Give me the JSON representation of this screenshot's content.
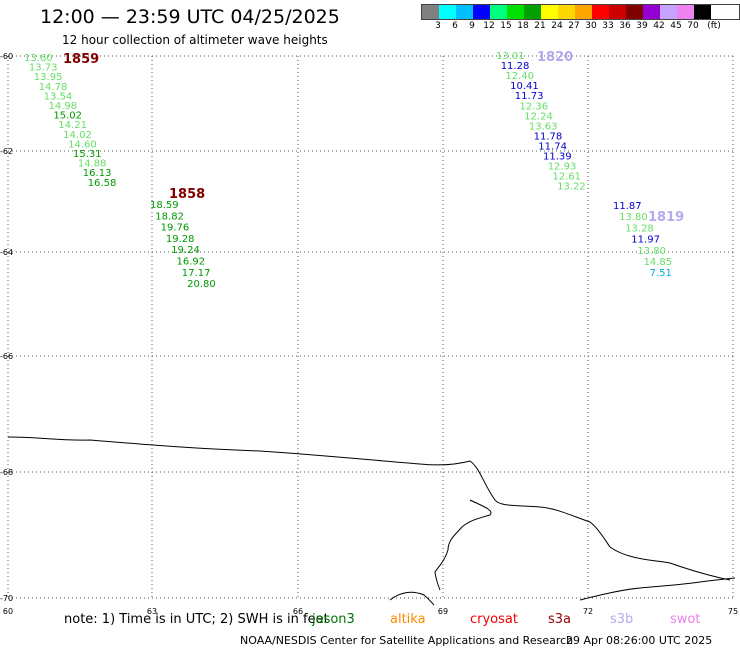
{
  "header": {
    "title": "12:00 — 23:59 UTC 04/25/2025",
    "subtitle": "12 hour collection of altimeter wave heights"
  },
  "legend": {
    "unit": "(ft)",
    "colors": [
      "#808080",
      "#00ffff",
      "#00bfff",
      "#0000ff",
      "#00ff7f",
      "#00e000",
      "#00a000",
      "#ffff00",
      "#ffd700",
      "#ffa500",
      "#ff0000",
      "#cc0000",
      "#800000",
      "#9400d3",
      "#c8a2ff",
      "#ee82ee",
      "#000000"
    ],
    "labels": [
      "3",
      "6",
      "9",
      "12",
      "15",
      "18",
      "21",
      "24",
      "27",
      "30",
      "33",
      "36",
      "39",
      "42",
      "45",
      "70"
    ]
  },
  "map": {
    "lat_ticks": [
      "-60",
      "-62",
      "-64",
      "-66",
      "-68",
      "-70"
    ],
    "lon_ticks": [
      "60",
      "63",
      "66",
      "69",
      "72",
      "75"
    ]
  },
  "passes": [
    {
      "time_label": "1859",
      "label_color": "#800000",
      "points": [
        {
          "v": "13.60",
          "c": "#66dd66"
        },
        {
          "v": "13.73",
          "c": "#66dd66"
        },
        {
          "v": "13.95",
          "c": "#66dd66"
        },
        {
          "v": "14.78",
          "c": "#66dd66"
        },
        {
          "v": "13.54",
          "c": "#66dd66"
        },
        {
          "v": "14.98",
          "c": "#66dd66"
        },
        {
          "v": "15.02",
          "c": "#009900"
        },
        {
          "v": "14.21",
          "c": "#66dd66"
        },
        {
          "v": "14.02",
          "c": "#66dd66"
        },
        {
          "v": "14.60",
          "c": "#66dd66"
        },
        {
          "v": "15.31",
          "c": "#009900"
        },
        {
          "v": "14.88",
          "c": "#66dd66"
        },
        {
          "v": "16.13",
          "c": "#009900"
        },
        {
          "v": "16.58",
          "c": "#009900"
        }
      ]
    },
    {
      "time_label": "1858",
      "label_color": "#800000",
      "points": [
        {
          "v": "18.59",
          "c": "#009900"
        },
        {
          "v": "18.82",
          "c": "#009900"
        },
        {
          "v": "19.76",
          "c": "#009900"
        },
        {
          "v": "19.28",
          "c": "#009900"
        },
        {
          "v": "19.24",
          "c": "#009900"
        },
        {
          "v": "16.92",
          "c": "#009900"
        },
        {
          "v": "17.17",
          "c": "#009900"
        },
        {
          "v": "20.80",
          "c": "#009900"
        }
      ]
    },
    {
      "time_label": "1820",
      "label_color": "#b8a8f0",
      "points": [
        {
          "v": "13.01",
          "c": "#66dd66"
        },
        {
          "v": "11.28",
          "c": "#0000cc"
        },
        {
          "v": "12.40",
          "c": "#66dd66"
        },
        {
          "v": "10.41",
          "c": "#0000cc"
        },
        {
          "v": "11.73",
          "c": "#0000cc"
        },
        {
          "v": "12.36",
          "c": "#66dd66"
        },
        {
          "v": "12.24",
          "c": "#66dd66"
        },
        {
          "v": "13.63",
          "c": "#66dd66"
        },
        {
          "v": "11.78",
          "c": "#0000cc"
        },
        {
          "v": "11.74",
          "c": "#0000cc"
        },
        {
          "v": "11.39",
          "c": "#0000cc"
        },
        {
          "v": "12.93",
          "c": "#66dd66"
        },
        {
          "v": "12.61",
          "c": "#66dd66"
        },
        {
          "v": "13.22",
          "c": "#66dd66"
        }
      ]
    },
    {
      "time_label": "1819",
      "label_color": "#b8a8f0",
      "points": [
        {
          "v": "11.87",
          "c": "#0000cc"
        },
        {
          "v": "13.80",
          "c": "#66dd66"
        },
        {
          "v": "13.28",
          "c": "#66dd66"
        },
        {
          "v": "11.97",
          "c": "#0000cc"
        },
        {
          "v": "13.80",
          "c": "#66dd66"
        },
        {
          "v": "14.85",
          "c": "#66dd66"
        },
        {
          "v": "7.51",
          "c": "#00aadd"
        }
      ]
    }
  ],
  "footer": {
    "note": "note: 1) Time is in UTC; 2) SWH is in feet",
    "missions": [
      {
        "name": "jason3",
        "color": "#007700"
      },
      {
        "name": "altika",
        "color": "#ff8c00"
      },
      {
        "name": "cryosat",
        "color": "#ee0000"
      },
      {
        "name": "s3a",
        "color": "#990000"
      },
      {
        "name": "s3b",
        "color": "#b8a8f0"
      },
      {
        "name": "swot",
        "color": "#ee82ee"
      }
    ],
    "credit": "NOAA/NESDIS Center for Satellite Applications and Research",
    "timestamp": "29 Apr 08:26:00 UTC 2025"
  }
}
